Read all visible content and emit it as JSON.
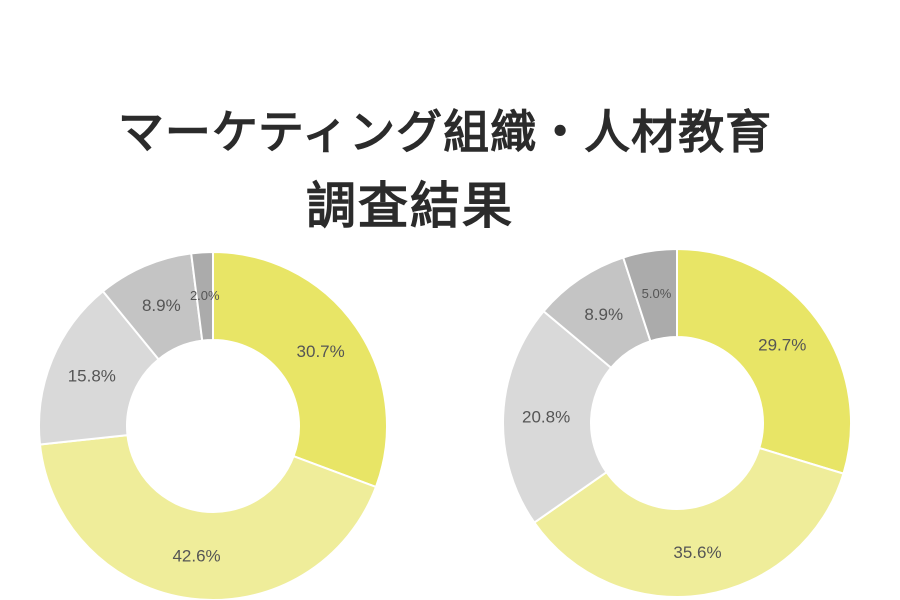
{
  "title": {
    "line1": "マーケティング組織・人材教育",
    "line2": "調査結果"
  },
  "chart_data": [
    {
      "type": "pie",
      "title": "",
      "values": [
        30.7,
        42.6,
        15.8,
        8.9,
        2.0
      ],
      "labels": [
        "30.7%",
        "42.6%",
        "15.8%",
        "8.9%",
        "2.0%"
      ],
      "colors": [
        "#e8e566",
        "#efed9a",
        "#d9d9d9",
        "#c4c4c4",
        "#ababab"
      ]
    },
    {
      "type": "pie",
      "title": "",
      "values": [
        29.7,
        35.6,
        20.8,
        8.9,
        5.0
      ],
      "labels": [
        "29.7%",
        "35.6%",
        "20.8%",
        "8.9%",
        "5.0%"
      ],
      "colors": [
        "#e8e566",
        "#efed9a",
        "#d9d9d9",
        "#c4c4c4",
        "#ababab"
      ]
    }
  ]
}
